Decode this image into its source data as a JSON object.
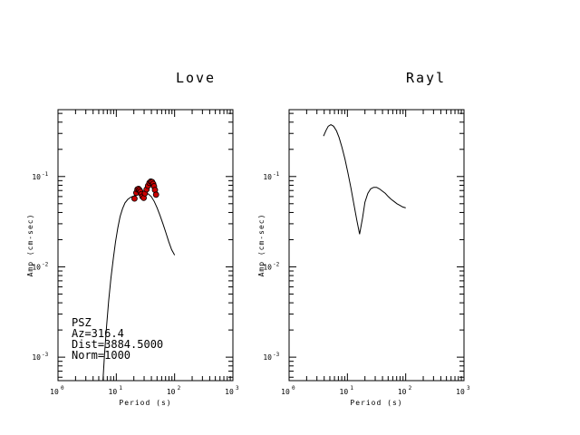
{
  "chart_data": [
    {
      "type": "line",
      "title": "Love",
      "xlabel": "Period (s)",
      "ylabel": "Amp (cm-sec)",
      "xscale": "log",
      "yscale": "log",
      "xlim": [
        1,
        1000
      ],
      "ylim": [
        0.00055,
        0.55
      ],
      "x_ticks": [
        {
          "base": "10",
          "exp": "0"
        },
        {
          "base": "10",
          "exp": "1"
        },
        {
          "base": "10",
          "exp": "2"
        },
        {
          "base": "10",
          "exp": "3"
        }
      ],
      "y_ticks": [
        {
          "base": "10",
          "exp": "-3",
          "value": 0.001
        },
        {
          "base": "10",
          "exp": "-2",
          "value": 0.01
        },
        {
          "base": "10",
          "exp": "-1",
          "value": 0.1
        }
      ],
      "annotations": [
        "PSZ",
        "Az=316.4",
        "Dist=3884.5000",
        "Norm=1000"
      ],
      "series": [
        {
          "kind": "line",
          "x": [
            5.9,
            6.3,
            6.8,
            7.4,
            8.1,
            8.9,
            9.7,
            10.6,
            11.6,
            12.8,
            14.1,
            15.8,
            17.8,
            20,
            22.4,
            25.1,
            28.2,
            31.6,
            35.5,
            39.8,
            44.7,
            50.1,
            56.2,
            63.1,
            70.8,
            79.4,
            89.1,
            100
          ],
          "y": [
            0.00055,
            0.0011,
            0.0022,
            0.0042,
            0.0075,
            0.0125,
            0.019,
            0.027,
            0.036,
            0.044,
            0.051,
            0.056,
            0.059,
            0.061,
            0.063,
            0.065,
            0.066,
            0.066,
            0.064,
            0.06,
            0.053,
            0.045,
            0.037,
            0.03,
            0.024,
            0.019,
            0.0155,
            0.0135
          ]
        },
        {
          "kind": "scatter",
          "color": "#cc0000",
          "x": [
            20.5,
            22,
            23,
            24,
            25,
            26,
            27,
            28,
            29.5,
            31,
            33,
            35,
            37,
            39,
            41,
            43,
            44.5,
            46,
            48
          ],
          "y": [
            0.057,
            0.066,
            0.072,
            0.073,
            0.071,
            0.068,
            0.064,
            0.06,
            0.058,
            0.065,
            0.072,
            0.079,
            0.085,
            0.088,
            0.087,
            0.083,
            0.078,
            0.071,
            0.063
          ]
        }
      ]
    },
    {
      "type": "line",
      "title": "Rayl",
      "xlabel": "Period (s)",
      "ylabel": "Amp (cm-sec)",
      "xscale": "log",
      "yscale": "log",
      "xlim": [
        1,
        1000
      ],
      "ylim": [
        0.00055,
        0.55
      ],
      "x_ticks": [
        {
          "base": "10",
          "exp": "0"
        },
        {
          "base": "10",
          "exp": "1"
        },
        {
          "base": "10",
          "exp": "2"
        },
        {
          "base": "10",
          "exp": "3"
        }
      ],
      "y_ticks": [
        {
          "base": "10",
          "exp": "-3",
          "value": 0.001
        },
        {
          "base": "10",
          "exp": "-2",
          "value": 0.01
        },
        {
          "base": "10",
          "exp": "-1",
          "value": 0.1
        }
      ],
      "series": [
        {
          "kind": "line",
          "x": [
            3.9,
            4.3,
            4.7,
            5.2,
            5.8,
            6.5,
            7.2,
            8.1,
            9.1,
            10.2,
            11.5,
            12.9,
            14.5,
            16.2,
            18.2,
            20,
            22.4,
            25.1,
            28.2,
            31.6,
            35.5,
            39.8,
            44.7,
            50.1,
            56.2,
            63.1,
            70.8,
            79.4,
            89.1,
            100
          ],
          "y": [
            0.28,
            0.325,
            0.36,
            0.375,
            0.36,
            0.32,
            0.27,
            0.21,
            0.155,
            0.11,
            0.075,
            0.05,
            0.033,
            0.023,
            0.035,
            0.052,
            0.065,
            0.073,
            0.076,
            0.076,
            0.073,
            0.069,
            0.065,
            0.06,
            0.056,
            0.053,
            0.05,
            0.048,
            0.046,
            0.045
          ]
        }
      ]
    }
  ]
}
